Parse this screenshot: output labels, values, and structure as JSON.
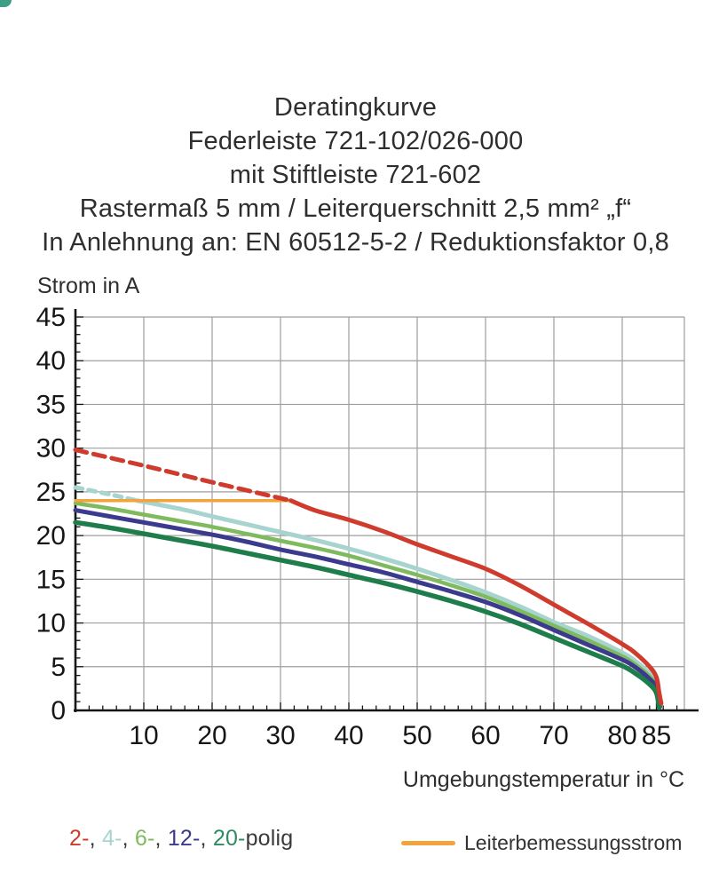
{
  "title": {
    "lines": [
      "Deratingkurve",
      "Federleiste 721-102/026-000",
      "mit Stiftleiste 721-602",
      "Rastermaß 5 mm / Leiterquerschnitt 2,5 mm² „f“",
      "In Anlehnung an: EN 60512-5-2 / Reduktionsfaktor 0,8"
    ]
  },
  "chart_data": {
    "type": "line",
    "title": "Deratingkurve Federleiste 721-102/026-000 mit Stiftleiste 721-602",
    "xlabel": "Umgebungstemperatur in °C",
    "ylabel": "Strom in A",
    "xlim": [
      0,
      89
    ],
    "ylim": [
      0,
      45
    ],
    "grid": true,
    "x_ticks": [
      10,
      20,
      30,
      40,
      50,
      60,
      70,
      80,
      85
    ],
    "y_ticks": [
      0,
      5,
      10,
      15,
      20,
      25,
      30,
      35,
      40,
      45
    ],
    "x_gridlines": [
      10,
      20,
      30,
      40,
      50,
      60,
      70,
      80
    ],
    "y_gridlines": [
      5,
      10,
      15,
      20,
      25,
      30,
      35,
      40,
      45
    ],
    "style": {
      "grid_color": "#9e9e9e",
      "axis_color": "#161616",
      "tick_label_color": "#161616"
    },
    "series": [
      {
        "name": "2-polig",
        "color": "#cf3b2c",
        "width": 5,
        "z": 2,
        "segments": [
          {
            "dash": "13 8",
            "points": [
              [
                0,
                29.8
              ],
              [
                10,
                28.0
              ],
              [
                20,
                26.1
              ],
              [
                31.5,
                24.0
              ]
            ]
          },
          {
            "points": [
              [
                31.5,
                24.0
              ],
              [
                35,
                22.9
              ],
              [
                40,
                21.8
              ],
              [
                45,
                20.5
              ],
              [
                50,
                19.0
              ],
              [
                55,
                17.6
              ],
              [
                60,
                16.2
              ],
              [
                65,
                14.3
              ],
              [
                70,
                12.1
              ],
              [
                75,
                9.9
              ],
              [
                80,
                7.6
              ],
              [
                82,
                6.5
              ],
              [
                84,
                5.0
              ],
              [
                85,
                3.8
              ],
              [
                85.4,
                2.0
              ],
              [
                85.7,
                0.8
              ]
            ]
          }
        ]
      },
      {
        "name": "4-polig",
        "color": "#a7d4cf",
        "width": 5,
        "z": 0,
        "segments": [
          {
            "dash": "8 7",
            "points": [
              [
                0,
                25.5
              ],
              [
                4.5,
                24.8
              ],
              [
                9,
                24.0
              ]
            ]
          },
          {
            "points": [
              [
                9,
                24.0
              ],
              [
                15,
                23.1
              ],
              [
                20,
                22.2
              ],
              [
                25,
                21.3
              ],
              [
                30,
                20.4
              ],
              [
                35,
                19.5
              ],
              [
                40,
                18.5
              ],
              [
                45,
                17.4
              ],
              [
                50,
                16.2
              ],
              [
                55,
                14.9
              ],
              [
                60,
                13.5
              ],
              [
                65,
                11.9
              ],
              [
                70,
                10.1
              ],
              [
                75,
                8.5
              ],
              [
                80,
                6.6
              ],
              [
                82,
                5.6
              ],
              [
                84,
                4.2
              ],
              [
                85,
                3.0
              ],
              [
                85.6,
                0.6
              ]
            ]
          }
        ]
      },
      {
        "name": "6-polig",
        "color": "#7fba5e",
        "width": 4.5,
        "z": 0,
        "segments": [
          {
            "points": [
              [
                0,
                23.7
              ],
              [
                5,
                23.1
              ],
              [
                10,
                22.4
              ],
              [
                15,
                21.7
              ],
              [
                20,
                21.0
              ],
              [
                25,
                20.2
              ],
              [
                30,
                19.4
              ],
              [
                35,
                18.6
              ],
              [
                40,
                17.7
              ],
              [
                45,
                16.6
              ],
              [
                50,
                15.5
              ],
              [
                55,
                14.3
              ],
              [
                60,
                13.0
              ],
              [
                65,
                11.4
              ],
              [
                70,
                9.7
              ],
              [
                75,
                8.0
              ],
              [
                80,
                6.2
              ],
              [
                82,
                5.2
              ],
              [
                84,
                3.9
              ],
              [
                85,
                2.8
              ],
              [
                85.5,
                0.5
              ]
            ]
          }
        ]
      },
      {
        "name": "12-polig",
        "color": "#3b3a8c",
        "width": 5,
        "z": 0,
        "segments": [
          {
            "points": [
              [
                0,
                22.9
              ],
              [
                5,
                22.2
              ],
              [
                10,
                21.5
              ],
              [
                15,
                20.8
              ],
              [
                20,
                20.1
              ],
              [
                25,
                19.3
              ],
              [
                30,
                18.4
              ],
              [
                35,
                17.6
              ],
              [
                40,
                16.7
              ],
              [
                45,
                15.8
              ],
              [
                50,
                14.7
              ],
              [
                55,
                13.6
              ],
              [
                60,
                12.4
              ],
              [
                65,
                10.9
              ],
              [
                70,
                9.2
              ],
              [
                75,
                7.5
              ],
              [
                80,
                5.8
              ],
              [
                82,
                4.9
              ],
              [
                84,
                3.6
              ],
              [
                85,
                2.6
              ],
              [
                85.5,
                0.4
              ]
            ]
          }
        ]
      },
      {
        "name": "20-polig",
        "color": "#1e7d4b",
        "width": 5.5,
        "z": 0,
        "segments": [
          {
            "points": [
              [
                0,
                21.5
              ],
              [
                5,
                20.9
              ],
              [
                10,
                20.2
              ],
              [
                15,
                19.5
              ],
              [
                20,
                18.8
              ],
              [
                25,
                18.0
              ],
              [
                30,
                17.2
              ],
              [
                35,
                16.4
              ],
              [
                40,
                15.5
              ],
              [
                45,
                14.6
              ],
              [
                50,
                13.6
              ],
              [
                55,
                12.5
              ],
              [
                60,
                11.3
              ],
              [
                65,
                9.9
              ],
              [
                70,
                8.3
              ],
              [
                75,
                6.7
              ],
              [
                80,
                5.1
              ],
              [
                82,
                4.2
              ],
              [
                84,
                3.0
              ],
              [
                85,
                2.0
              ],
              [
                85.4,
                0.3
              ]
            ]
          }
        ]
      }
    ],
    "reference_line": {
      "name": "Leiterbemessungsstrom",
      "color": "#f2a33c",
      "width": 3.5,
      "z": 1,
      "segments": [
        {
          "points": [
            [
              0,
              24
            ],
            [
              31.5,
              24
            ]
          ]
        }
      ]
    }
  },
  "legend": {
    "default_color": "#3a3a3a",
    "tokens": [
      {
        "text": "2-",
        "color": "#cf3b2c"
      },
      {
        "text": ", "
      },
      {
        "text": "4-",
        "color": "#a7d4cf"
      },
      {
        "text": ", "
      },
      {
        "text": "6-",
        "color": "#7fba5e"
      },
      {
        "text": ", "
      },
      {
        "text": "12-",
        "color": "#3b3a8c"
      },
      {
        "text": ", "
      },
      {
        "text": "20-",
        "color": "#2e8b62"
      },
      {
        "text": "polig"
      }
    ],
    "reference_label": "Leiterbemessungsstrom",
    "reference_color": "#f2a33c"
  }
}
